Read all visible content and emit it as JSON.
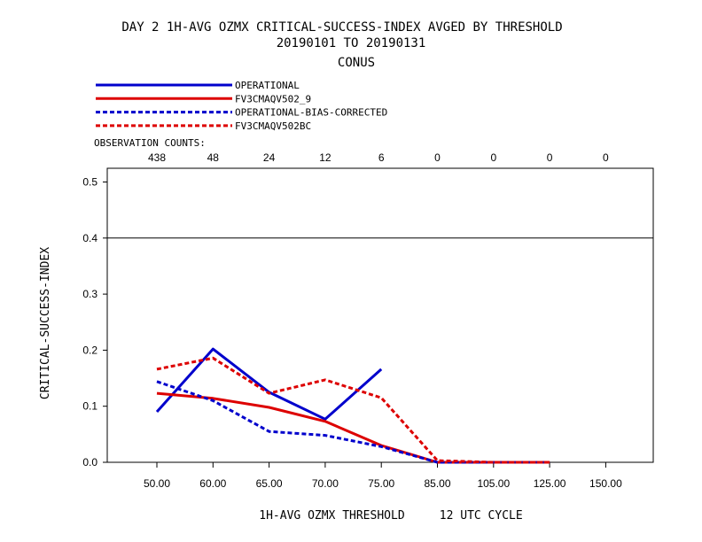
{
  "chart_data": {
    "type": "line",
    "title": "DAY 2   1H-AVG OZMX CRITICAL-SUCCESS-INDEX   AVGED BY THRESHOLD",
    "subtitle1": "20190101 TO 20190131",
    "subtitle2": "CONUS",
    "xlabel": "1H-AVG OZMX THRESHOLD     12 UTC CYCLE",
    "ylabel": "CRITICAL-SUCCESS-INDEX",
    "categories": [
      "50.00",
      "60.00",
      "65.00",
      "70.00",
      "75.00",
      "85.00",
      "105.00",
      "125.00",
      "150.00"
    ],
    "obs_label": "OBSERVATION COUNTS:",
    "obs_counts": [
      "438",
      "48",
      "24",
      "12",
      "6",
      "0",
      "0",
      "0",
      "0"
    ],
    "ylim": [
      0,
      0.52
    ],
    "yticks": [
      "0.0",
      "0.1",
      "0.2",
      "0.3",
      "0.4",
      "0.5"
    ],
    "reference_line": 0.4,
    "series": [
      {
        "name": "OPERATIONAL",
        "color": "#0000cc",
        "dashed": false,
        "values": [
          0.09,
          0.202,
          0.125,
          0.077,
          0.166,
          null,
          null,
          null,
          null
        ]
      },
      {
        "name": "FV3CMAQV502_9",
        "color": "#dd0000",
        "dashed": false,
        "values": [
          0.123,
          0.114,
          0.098,
          0.073,
          0.03,
          0.0,
          0.0,
          0.0,
          null
        ]
      },
      {
        "name": "OPERATIONAL-BIAS-CORRECTED",
        "color": "#0000cc",
        "dashed": true,
        "values": [
          0.144,
          0.11,
          0.055,
          0.048,
          0.028,
          0.0,
          0.0,
          0.0,
          null
        ]
      },
      {
        "name": "FV3CMAQV502BC",
        "color": "#dd0000",
        "dashed": true,
        "values": [
          0.166,
          0.186,
          0.123,
          0.147,
          0.115,
          0.003,
          0.0,
          0.0,
          null
        ]
      }
    ]
  }
}
